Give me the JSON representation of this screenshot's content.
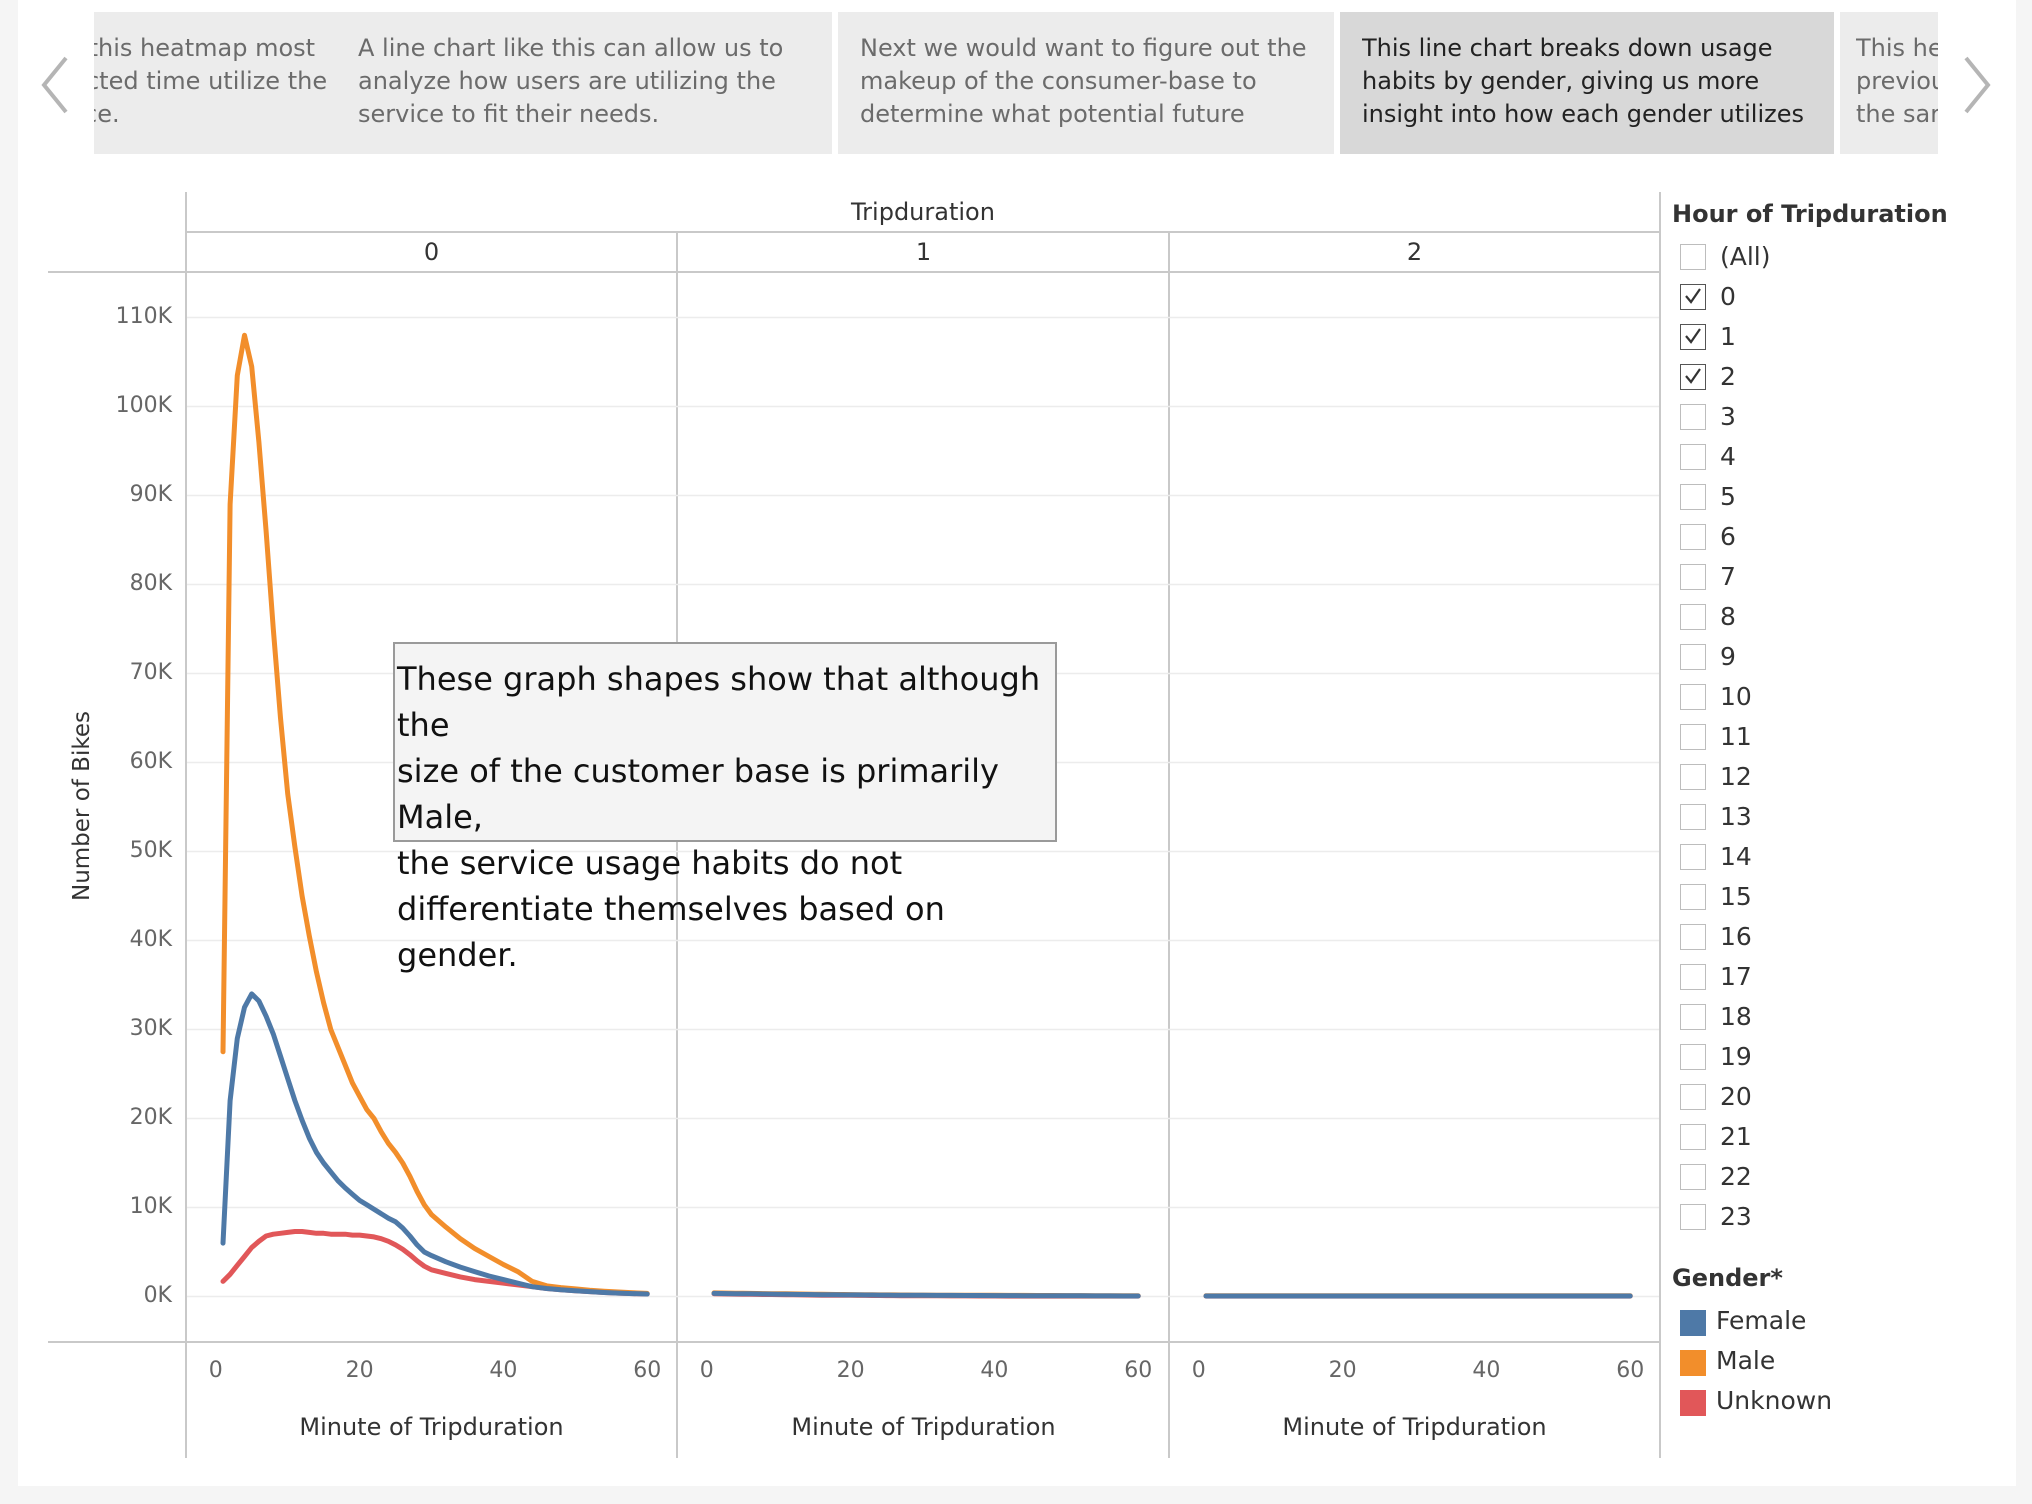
{
  "story": {
    "points": [
      {
        "text": "text, this heatmap most impacted time utilize the service.",
        "active": false
      },
      {
        "text": "A line chart like this can allow us to analyze how users are utilizing the service to fit their needs.",
        "active": false
      },
      {
        "text": "Next we would want to figure out the makeup of the consumer-base to determine what potential future",
        "active": false
      },
      {
        "text": "This line chart breaks down usage habits by gender, giving us more insight into how each gender utilizes the",
        "active": true
      },
      {
        "text": "This he previou the sar",
        "active": false
      }
    ]
  },
  "nav": {
    "prev_icon": "chevron-left-icon",
    "next_icon": "chevron-right-icon"
  },
  "chart_data": {
    "type": "line",
    "column_header": "Tripduration",
    "panels": [
      "0",
      "1",
      "2"
    ],
    "xlabel": "Minute of Tripduration",
    "ylabel": "Number of Bikes",
    "xticks": [
      "0",
      "20",
      "40",
      "60"
    ],
    "xlim": [
      -4,
      64
    ],
    "ylim": [
      -5000,
      115000
    ],
    "yticks": [
      "0K",
      "10K",
      "20K",
      "30K",
      "40K",
      "50K",
      "60K",
      "70K",
      "80K",
      "90K",
      "100K",
      "110K"
    ],
    "x": [
      1,
      2,
      3,
      4,
      5,
      6,
      7,
      8,
      9,
      10,
      11,
      12,
      13,
      14,
      15,
      16,
      17,
      18,
      19,
      20,
      21,
      22,
      23,
      24,
      25,
      26,
      27,
      28,
      29,
      30,
      32,
      34,
      36,
      38,
      40,
      42,
      44,
      46,
      48,
      50,
      52,
      54,
      56,
      58,
      60
    ],
    "series": [
      {
        "name": "Female",
        "color": "#4e79a7",
        "panels": [
          [
            6000,
            22000,
            29000,
            32500,
            34000,
            33200,
            31500,
            29500,
            27000,
            24500,
            22000,
            19800,
            17800,
            16200,
            15000,
            14000,
            13000,
            12200,
            11500,
            10800,
            10300,
            9800,
            9300,
            8800,
            8400,
            7700,
            6800,
            5800,
            5000,
            4600,
            3900,
            3300,
            2800,
            2300,
            1900,
            1500,
            1100,
            900,
            750,
            650,
            550,
            450,
            380,
            330,
            280
          ],
          [
            350,
            340,
            330,
            320,
            310,
            300,
            290,
            280,
            270,
            260,
            250,
            240,
            230,
            220,
            210,
            200,
            195,
            190,
            185,
            180,
            175,
            170,
            165,
            160,
            155,
            150,
            145,
            140,
            135,
            130,
            125,
            120,
            115,
            110,
            105,
            100,
            95,
            90,
            85,
            80,
            75,
            70,
            65,
            60,
            60
          ],
          [
            60,
            60,
            60,
            60,
            60,
            60,
            60,
            60,
            60,
            60,
            60,
            60,
            60,
            60,
            60,
            60,
            60,
            60,
            60,
            60,
            60,
            60,
            60,
            60,
            60,
            60,
            60,
            60,
            60,
            60,
            60,
            60,
            60,
            60,
            60,
            60,
            60,
            60,
            60,
            60,
            60,
            60,
            60,
            60,
            60
          ]
        ]
      },
      {
        "name": "Male",
        "color": "#f28e2b",
        "panels": [
          [
            27500,
            89000,
            103500,
            108000,
            104500,
            96000,
            86000,
            75000,
            65000,
            56500,
            50500,
            45000,
            40500,
            36500,
            33000,
            30000,
            28000,
            26000,
            24000,
            22500,
            21000,
            20000,
            18500,
            17200,
            16200,
            15000,
            13500,
            11800,
            10300,
            9200,
            7800,
            6500,
            5400,
            4500,
            3600,
            2800,
            1700,
            1200,
            1000,
            850,
            700,
            600,
            500,
            420,
            350
          ],
          [
            400,
            390,
            380,
            370,
            360,
            350,
            340,
            330,
            320,
            310,
            300,
            290,
            280,
            270,
            260,
            250,
            240,
            230,
            220,
            210,
            200,
            195,
            190,
            185,
            180,
            175,
            170,
            165,
            160,
            155,
            150,
            145,
            140,
            135,
            130,
            125,
            120,
            115,
            110,
            105,
            100,
            95,
            90,
            85,
            80
          ],
          [
            80,
            80,
            80,
            80,
            80,
            80,
            80,
            80,
            80,
            80,
            80,
            80,
            80,
            80,
            80,
            80,
            80,
            80,
            80,
            80,
            80,
            80,
            80,
            80,
            80,
            80,
            80,
            80,
            80,
            80,
            80,
            80,
            80,
            80,
            80,
            80,
            80,
            80,
            80,
            80,
            80,
            80,
            80,
            80,
            80
          ]
        ]
      },
      {
        "name": "Unknown",
        "color": "#e15759",
        "panels": [
          [
            1700,
            2500,
            3500,
            4500,
            5500,
            6200,
            6800,
            7000,
            7100,
            7200,
            7300,
            7300,
            7200,
            7100,
            7100,
            7000,
            7000,
            7000,
            6900,
            6900,
            6800,
            6700,
            6500,
            6200,
            5800,
            5300,
            4700,
            4000,
            3400,
            3000,
            2600,
            2200,
            1900,
            1700,
            1500,
            1300,
            1100,
            900,
            750,
            650,
            550,
            450,
            380,
            330,
            280
          ],
          [
            300,
            290,
            280,
            270,
            260,
            250,
            240,
            230,
            220,
            210,
            200,
            190,
            180,
            170,
            160,
            150,
            145,
            140,
            135,
            130,
            125,
            120,
            115,
            110,
            105,
            100,
            95,
            90,
            85,
            80,
            75,
            70,
            65,
            60,
            55,
            50,
            50,
            50,
            50,
            50,
            50,
            50,
            50,
            50,
            50
          ],
          [
            50,
            50,
            50,
            50,
            50,
            50,
            50,
            50,
            50,
            50,
            50,
            50,
            50,
            50,
            50,
            50,
            50,
            50,
            50,
            50,
            50,
            50,
            50,
            50,
            50,
            50,
            50,
            50,
            50,
            50,
            50,
            50,
            50,
            50,
            50,
            50,
            50,
            50,
            50,
            50,
            50,
            50,
            50,
            50,
            50
          ]
        ]
      }
    ],
    "annotation": "These graph shapes show that although the\nsize of the customer base is primarily Male,\nthe service usage habits do not\ndifferentiate themselves based on gender.",
    "grid": "horizontal"
  },
  "filter": {
    "title": "Hour of Tripduration",
    "options": [
      {
        "label": "(All)",
        "checked": false
      },
      {
        "label": "0",
        "checked": true
      },
      {
        "label": "1",
        "checked": true
      },
      {
        "label": "2",
        "checked": true
      },
      {
        "label": "3",
        "checked": false
      },
      {
        "label": "4",
        "checked": false
      },
      {
        "label": "5",
        "checked": false
      },
      {
        "label": "6",
        "checked": false
      },
      {
        "label": "7",
        "checked": false
      },
      {
        "label": "8",
        "checked": false
      },
      {
        "label": "9",
        "checked": false
      },
      {
        "label": "10",
        "checked": false
      },
      {
        "label": "11",
        "checked": false
      },
      {
        "label": "12",
        "checked": false
      },
      {
        "label": "13",
        "checked": false
      },
      {
        "label": "14",
        "checked": false
      },
      {
        "label": "15",
        "checked": false
      },
      {
        "label": "16",
        "checked": false
      },
      {
        "label": "17",
        "checked": false
      },
      {
        "label": "18",
        "checked": false
      },
      {
        "label": "19",
        "checked": false
      },
      {
        "label": "20",
        "checked": false
      },
      {
        "label": "21",
        "checked": false
      },
      {
        "label": "22",
        "checked": false
      },
      {
        "label": "23",
        "checked": false
      }
    ]
  },
  "legend": {
    "title": "Gender*",
    "items": [
      {
        "label": "Female",
        "color": "#4e79a7"
      },
      {
        "label": "Male",
        "color": "#f28e2b"
      },
      {
        "label": "Unknown",
        "color": "#e15759"
      }
    ]
  }
}
